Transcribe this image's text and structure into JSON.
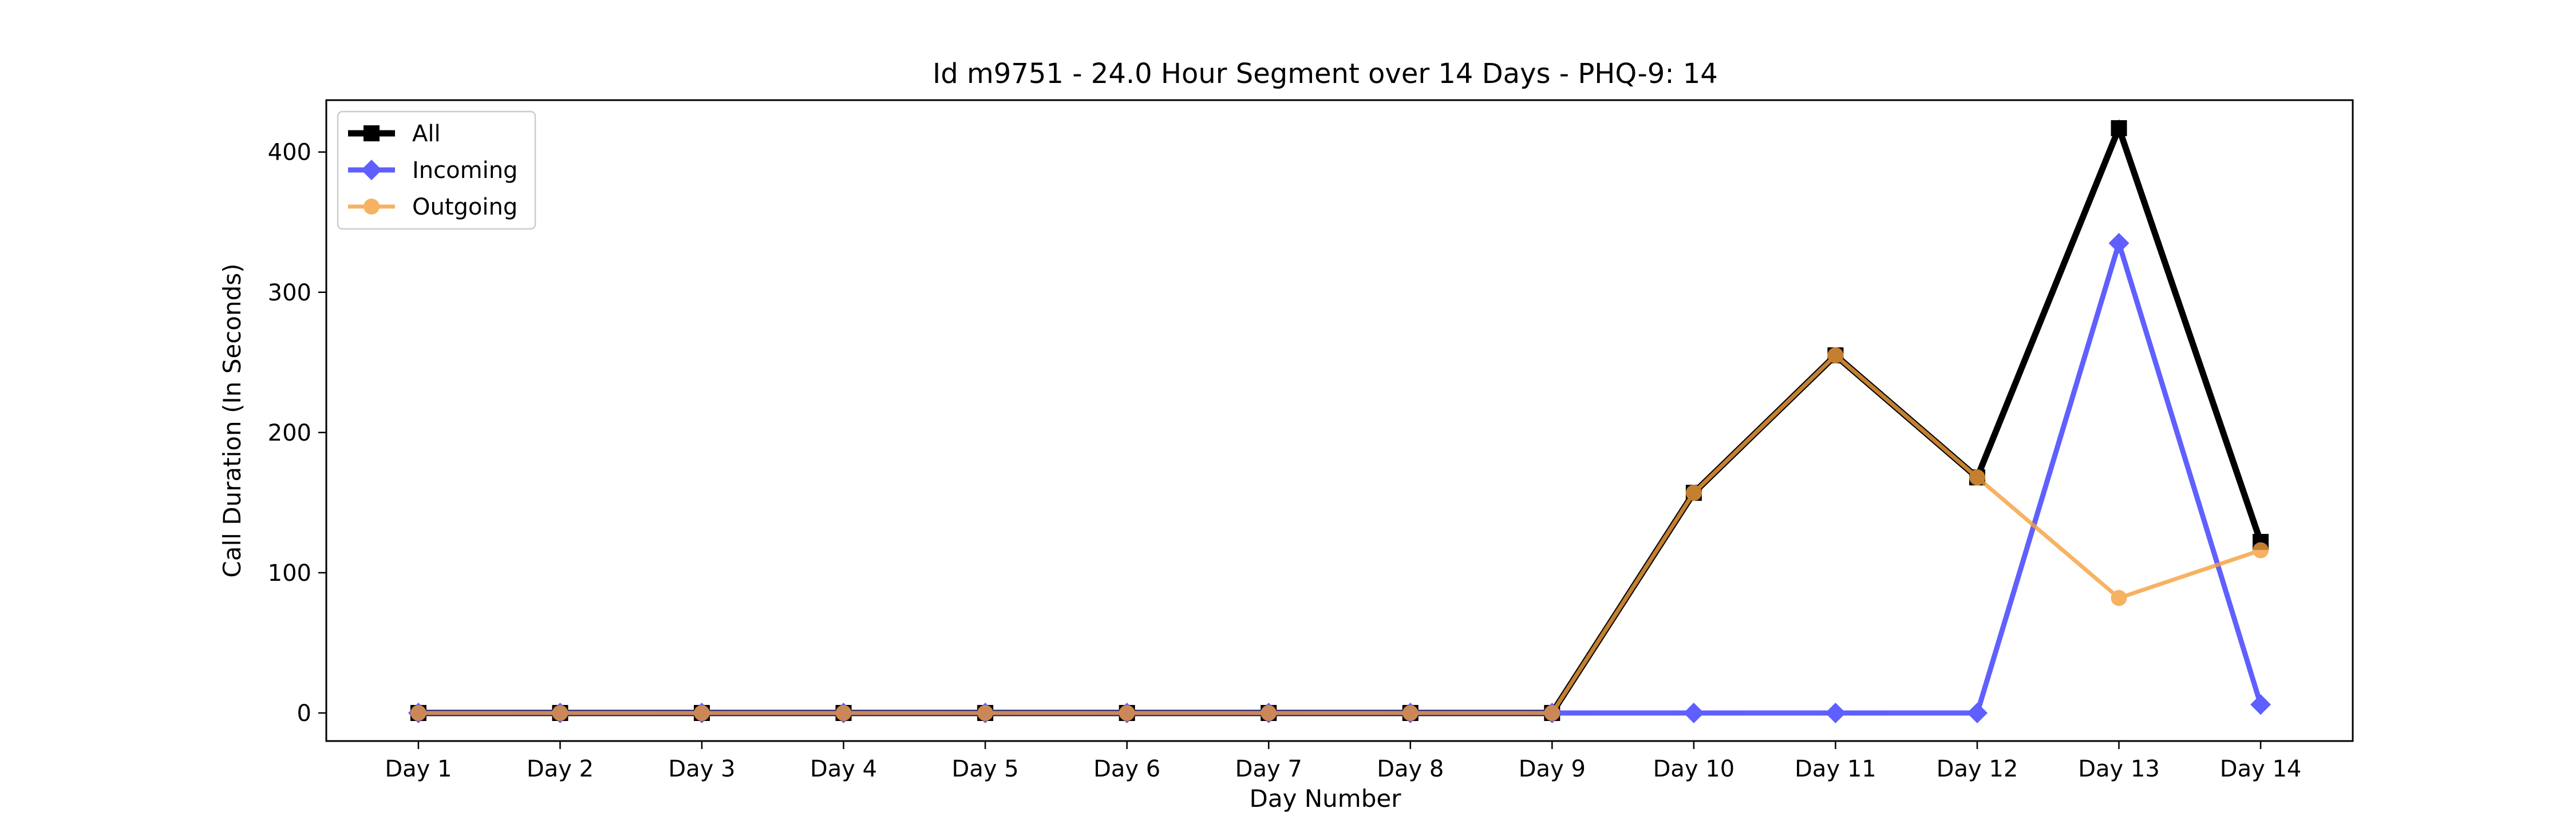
{
  "chart_data": {
    "type": "line",
    "title": "Id m9751 - 24.0 Hour Segment over 14 Days - PHQ-9: 14",
    "xlabel": "Day Number",
    "ylabel": "Call Duration (In Seconds)",
    "categories": [
      "Day 1",
      "Day 2",
      "Day 3",
      "Day 4",
      "Day 5",
      "Day 6",
      "Day 7",
      "Day 8",
      "Day 9",
      "Day 10",
      "Day 11",
      "Day 12",
      "Day 13",
      "Day 14"
    ],
    "y_ticks": [
      0,
      100,
      200,
      300,
      400
    ],
    "ylim": [
      -20,
      437
    ],
    "grid": false,
    "legend_position": "top-left",
    "series": [
      {
        "name": "All",
        "color": "#000000",
        "marker": "square",
        "values": [
          0,
          0,
          0,
          0,
          0,
          0,
          0,
          0,
          0,
          157,
          255,
          168,
          417,
          122
        ]
      },
      {
        "name": "Incoming",
        "color": "#3333ff",
        "marker": "diamond",
        "values": [
          0,
          0,
          0,
          0,
          0,
          0,
          0,
          0,
          0,
          0,
          0,
          0,
          335,
          6
        ]
      },
      {
        "name": "Outgoing",
        "color": "#f5a03c",
        "marker": "circle",
        "values": [
          0,
          0,
          0,
          0,
          0,
          0,
          0,
          0,
          0,
          157,
          255,
          168,
          82,
          116
        ]
      }
    ]
  }
}
